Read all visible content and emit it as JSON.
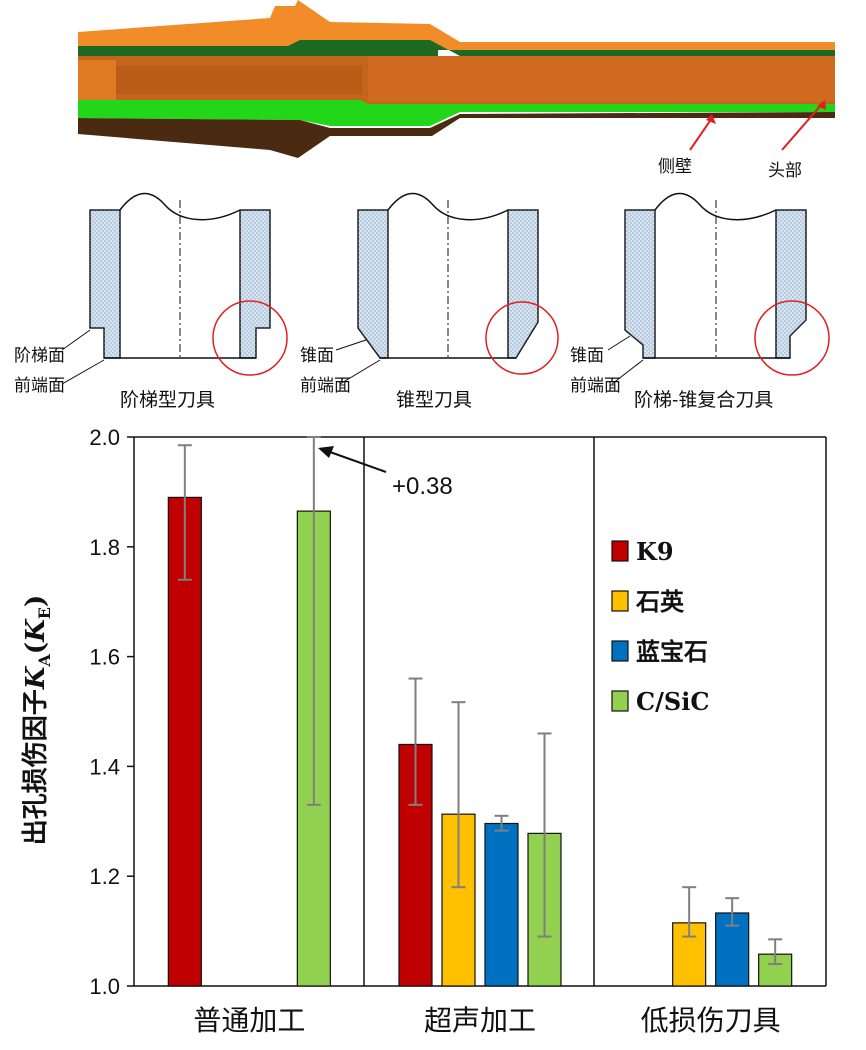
{
  "tool_image": {
    "labels": [
      "侧壁",
      "头部"
    ],
    "colors": {
      "shell": "#f28c28",
      "core": "#c4651c",
      "green_top": "#1d6b22",
      "green_bottom": "#22d61a",
      "dark": "#4a2a10"
    }
  },
  "tool_profiles": [
    {
      "caption": "阶梯型刀具",
      "labels": [
        "阶梯面",
        "前端面"
      ]
    },
    {
      "caption": "锥型刀具",
      "labels": [
        "锥面",
        "前端面"
      ]
    },
    {
      "caption": "阶梯-锥复合刀具",
      "labels": [
        "锥面",
        "前端面"
      ]
    }
  ],
  "chart_data": {
    "type": "bar",
    "title": "",
    "xlabel": "",
    "ylabel": "出孔损伤因子",
    "ylabel_symbol": "K",
    "ylabel_sub_a": "A",
    "ylabel_paren_open": "(",
    "ylabel_symbol_e": "K",
    "ylabel_sub_e": "E",
    "ylabel_paren_close": ")",
    "ylim": [
      1.0,
      2.0
    ],
    "yticks": [
      "1.0",
      "1.2",
      "1.4",
      "1.6",
      "1.8",
      "2.0"
    ],
    "categories": [
      "普通加工",
      "超声加工",
      "低损伤刀具"
    ],
    "series": [
      {
        "name": "K9",
        "color": "#c00000",
        "values": [
          1.89,
          1.44,
          null
        ],
        "err_low": [
          1.74,
          1.33,
          null
        ],
        "err_high": [
          1.985,
          1.56,
          null
        ]
      },
      {
        "name": "石英",
        "color": "#ffc000",
        "values": [
          null,
          1.313,
          1.115
        ],
        "err_low": [
          null,
          1.18,
          1.09
        ],
        "err_high": [
          null,
          1.517,
          1.18
        ]
      },
      {
        "name": "蓝宝石",
        "color": "#0070c0",
        "values": [
          null,
          1.296,
          1.133
        ],
        "err_low": [
          null,
          1.283,
          1.11
        ],
        "err_high": [
          null,
          1.31,
          1.16
        ]
      },
      {
        "name": "C/SiC",
        "color": "#92d050",
        "values": [
          1.865,
          1.278,
          1.058
        ],
        "err_low": [
          1.33,
          1.09,
          1.04
        ],
        "err_high": [
          2.0,
          1.46,
          1.085
        ]
      }
    ],
    "annotation": "+0.38",
    "legend_position": "right",
    "grid": false
  }
}
